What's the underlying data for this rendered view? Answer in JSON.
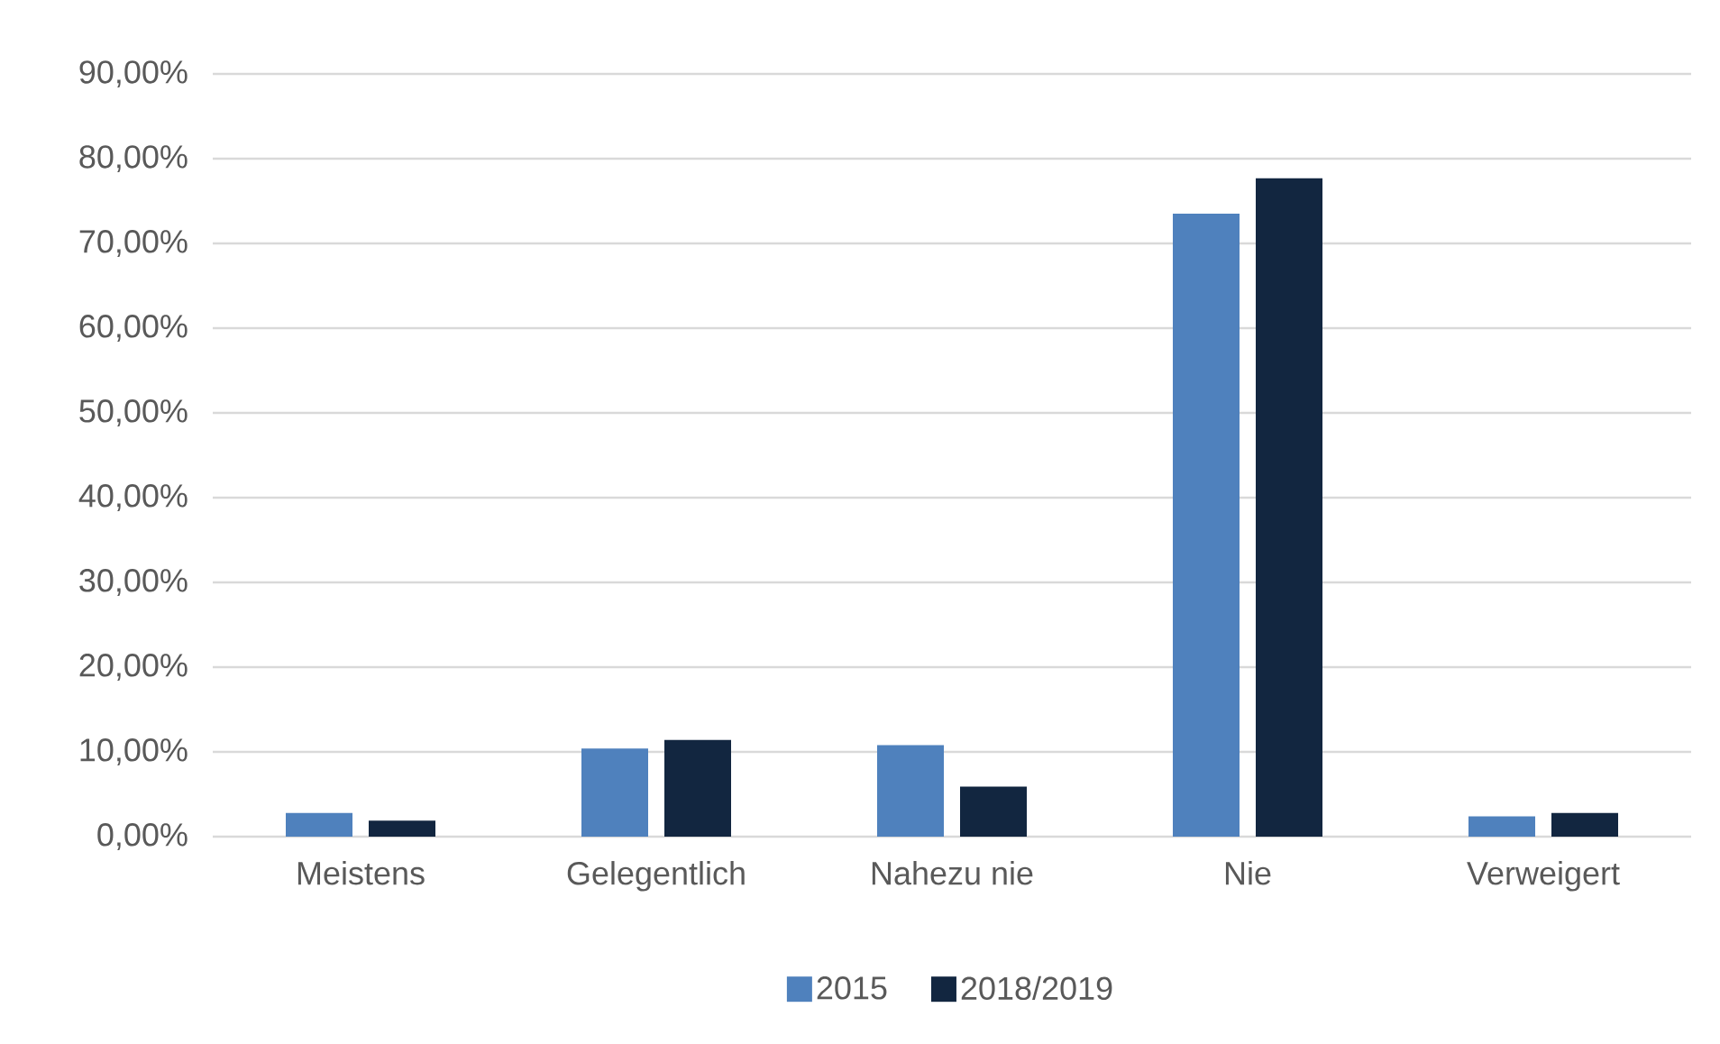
{
  "chart_data": {
    "type": "bar",
    "categories": [
      "Meistens",
      "Gelegentlich",
      "Nahezu nie",
      "Nie",
      "Verweigert"
    ],
    "series": [
      {
        "name": "2015",
        "color": "#4f81bd",
        "values": [
          2.8,
          10.4,
          10.8,
          73.5,
          2.4
        ]
      },
      {
        "name": "2018/2019",
        "color": "#122640",
        "values": [
          1.9,
          11.4,
          5.9,
          77.7,
          2.8
        ]
      }
    ],
    "ylim": [
      0,
      90
    ],
    "yticks": [
      {
        "value": 0,
        "label": "0,00%"
      },
      {
        "value": 10,
        "label": "10,00%"
      },
      {
        "value": 20,
        "label": "20,00%"
      },
      {
        "value": 30,
        "label": "30,00%"
      },
      {
        "value": 40,
        "label": "40,00%"
      },
      {
        "value": 50,
        "label": "50,00%"
      },
      {
        "value": 60,
        "label": "60,00%"
      },
      {
        "value": 70,
        "label": "70,00%"
      },
      {
        "value": 80,
        "label": "80,00%"
      },
      {
        "value": 90,
        "label": "90,00%"
      }
    ],
    "grid": "y",
    "legend": "bottom"
  }
}
